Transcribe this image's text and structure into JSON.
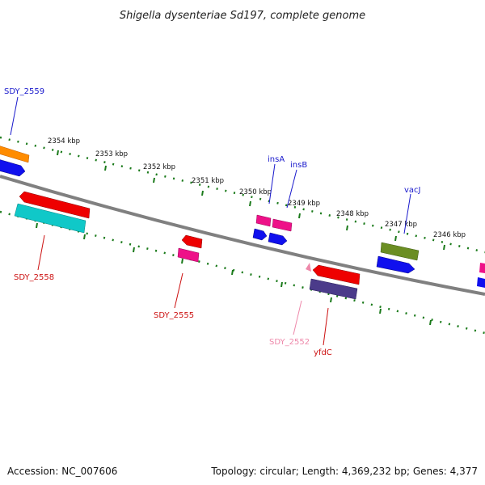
{
  "header": {
    "title": "Shigella dysenteriae Sd197, complete genome"
  },
  "footer": {
    "accession": "Accession: NC_007606",
    "topology": "Topology: circular; Length: 4,369,232 bp; Genes: 4,377"
  },
  "scale_labels": [
    "2354 kbp",
    "2353 kbp",
    "2352 kbp",
    "2351 kbp",
    "2350 kbp",
    "2349 kbp",
    "2348 kbp",
    "2347 kbp",
    "2346 kbp"
  ],
  "gene_labels": {
    "sdy_2559": "SDY_2559",
    "insA": "insA",
    "insB": "insB",
    "vacJ": "vacJ",
    "sdy_2558": "SDY_2558",
    "sdy_2555": "SDY_2555",
    "sdy_2552": "SDY_2552",
    "yfdC": "yfdC"
  },
  "colors": {
    "backbone": "#808080",
    "ticks": "#1a7a1a",
    "label_blue": "#1a1acc",
    "label_red": "#cc1111",
    "label_pink": "#ee88aa",
    "orange": "#ff8c00",
    "blue": "#1010ee",
    "red": "#ee0000",
    "cyan": "#10c8c8",
    "magenta": "#ee1188",
    "olive": "#6b8e23",
    "purple": "#4b3b8a"
  }
}
